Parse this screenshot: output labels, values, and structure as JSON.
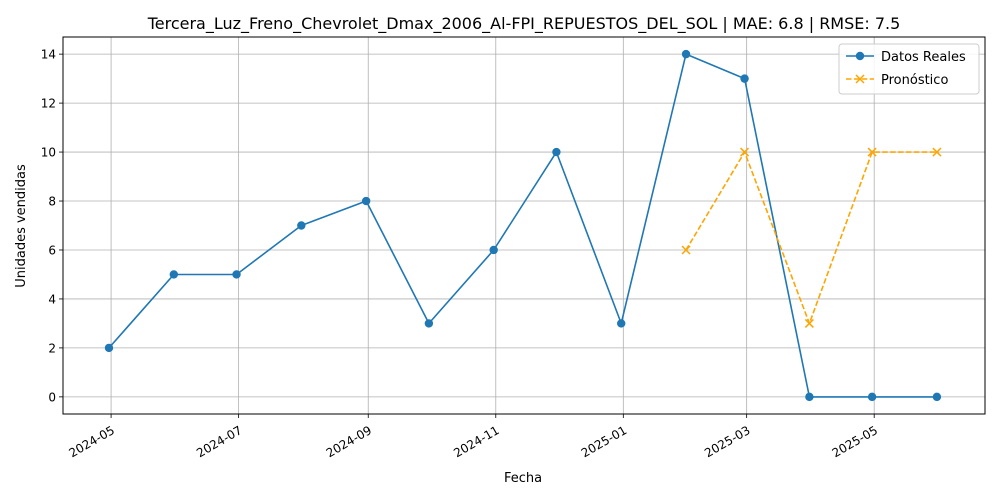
{
  "chart_data": {
    "type": "line",
    "title": "Tercera_Luz_Freno_Chevrolet_Dmax_2006_Al-FPI_REPUESTOS_DEL_SOL | MAE: 6.8 | RMSE: 7.5",
    "xlabel": "Fecha",
    "ylabel": "Unidades vendidas",
    "ylim": [
      -0.7,
      14.7
    ],
    "xlim": [
      "2024-04-08",
      "2025-06-23"
    ],
    "grid": true,
    "legend_position": "top-right",
    "y_ticks": [
      0,
      2,
      4,
      6,
      8,
      10,
      12,
      14
    ],
    "x_ticks": [
      "2024-05-01",
      "2024-07-01",
      "2024-09-01",
      "2024-11-01",
      "2025-01-01",
      "2025-03-01",
      "2025-05-01"
    ],
    "x_tick_labels": [
      "2024-05",
      "2024-07",
      "2024-09",
      "2024-11",
      "2025-01",
      "2025-03",
      "2025-05"
    ],
    "series": [
      {
        "name": "Datos Reales",
        "color": "#1f77b4",
        "line_style": "solid",
        "marker": "circle",
        "x": [
          "2024-04-30",
          "2024-05-31",
          "2024-06-30",
          "2024-07-31",
          "2024-08-31",
          "2024-09-30",
          "2024-10-31",
          "2024-11-30",
          "2024-12-31",
          "2025-01-31",
          "2025-02-28",
          "2025-03-31",
          "2025-04-30",
          "2025-05-31"
        ],
        "y": [
          2,
          5,
          5,
          7,
          8,
          3,
          6,
          10,
          3,
          14,
          13,
          0,
          0,
          0
        ]
      },
      {
        "name": "Pronóstico",
        "color": "#ffa500",
        "line_style": "dashed",
        "marker": "x",
        "x": [
          "2025-01-31",
          "2025-02-28",
          "2025-03-31",
          "2025-04-30",
          "2025-05-31"
        ],
        "y": [
          6,
          10,
          3,
          10,
          10
        ]
      }
    ]
  }
}
